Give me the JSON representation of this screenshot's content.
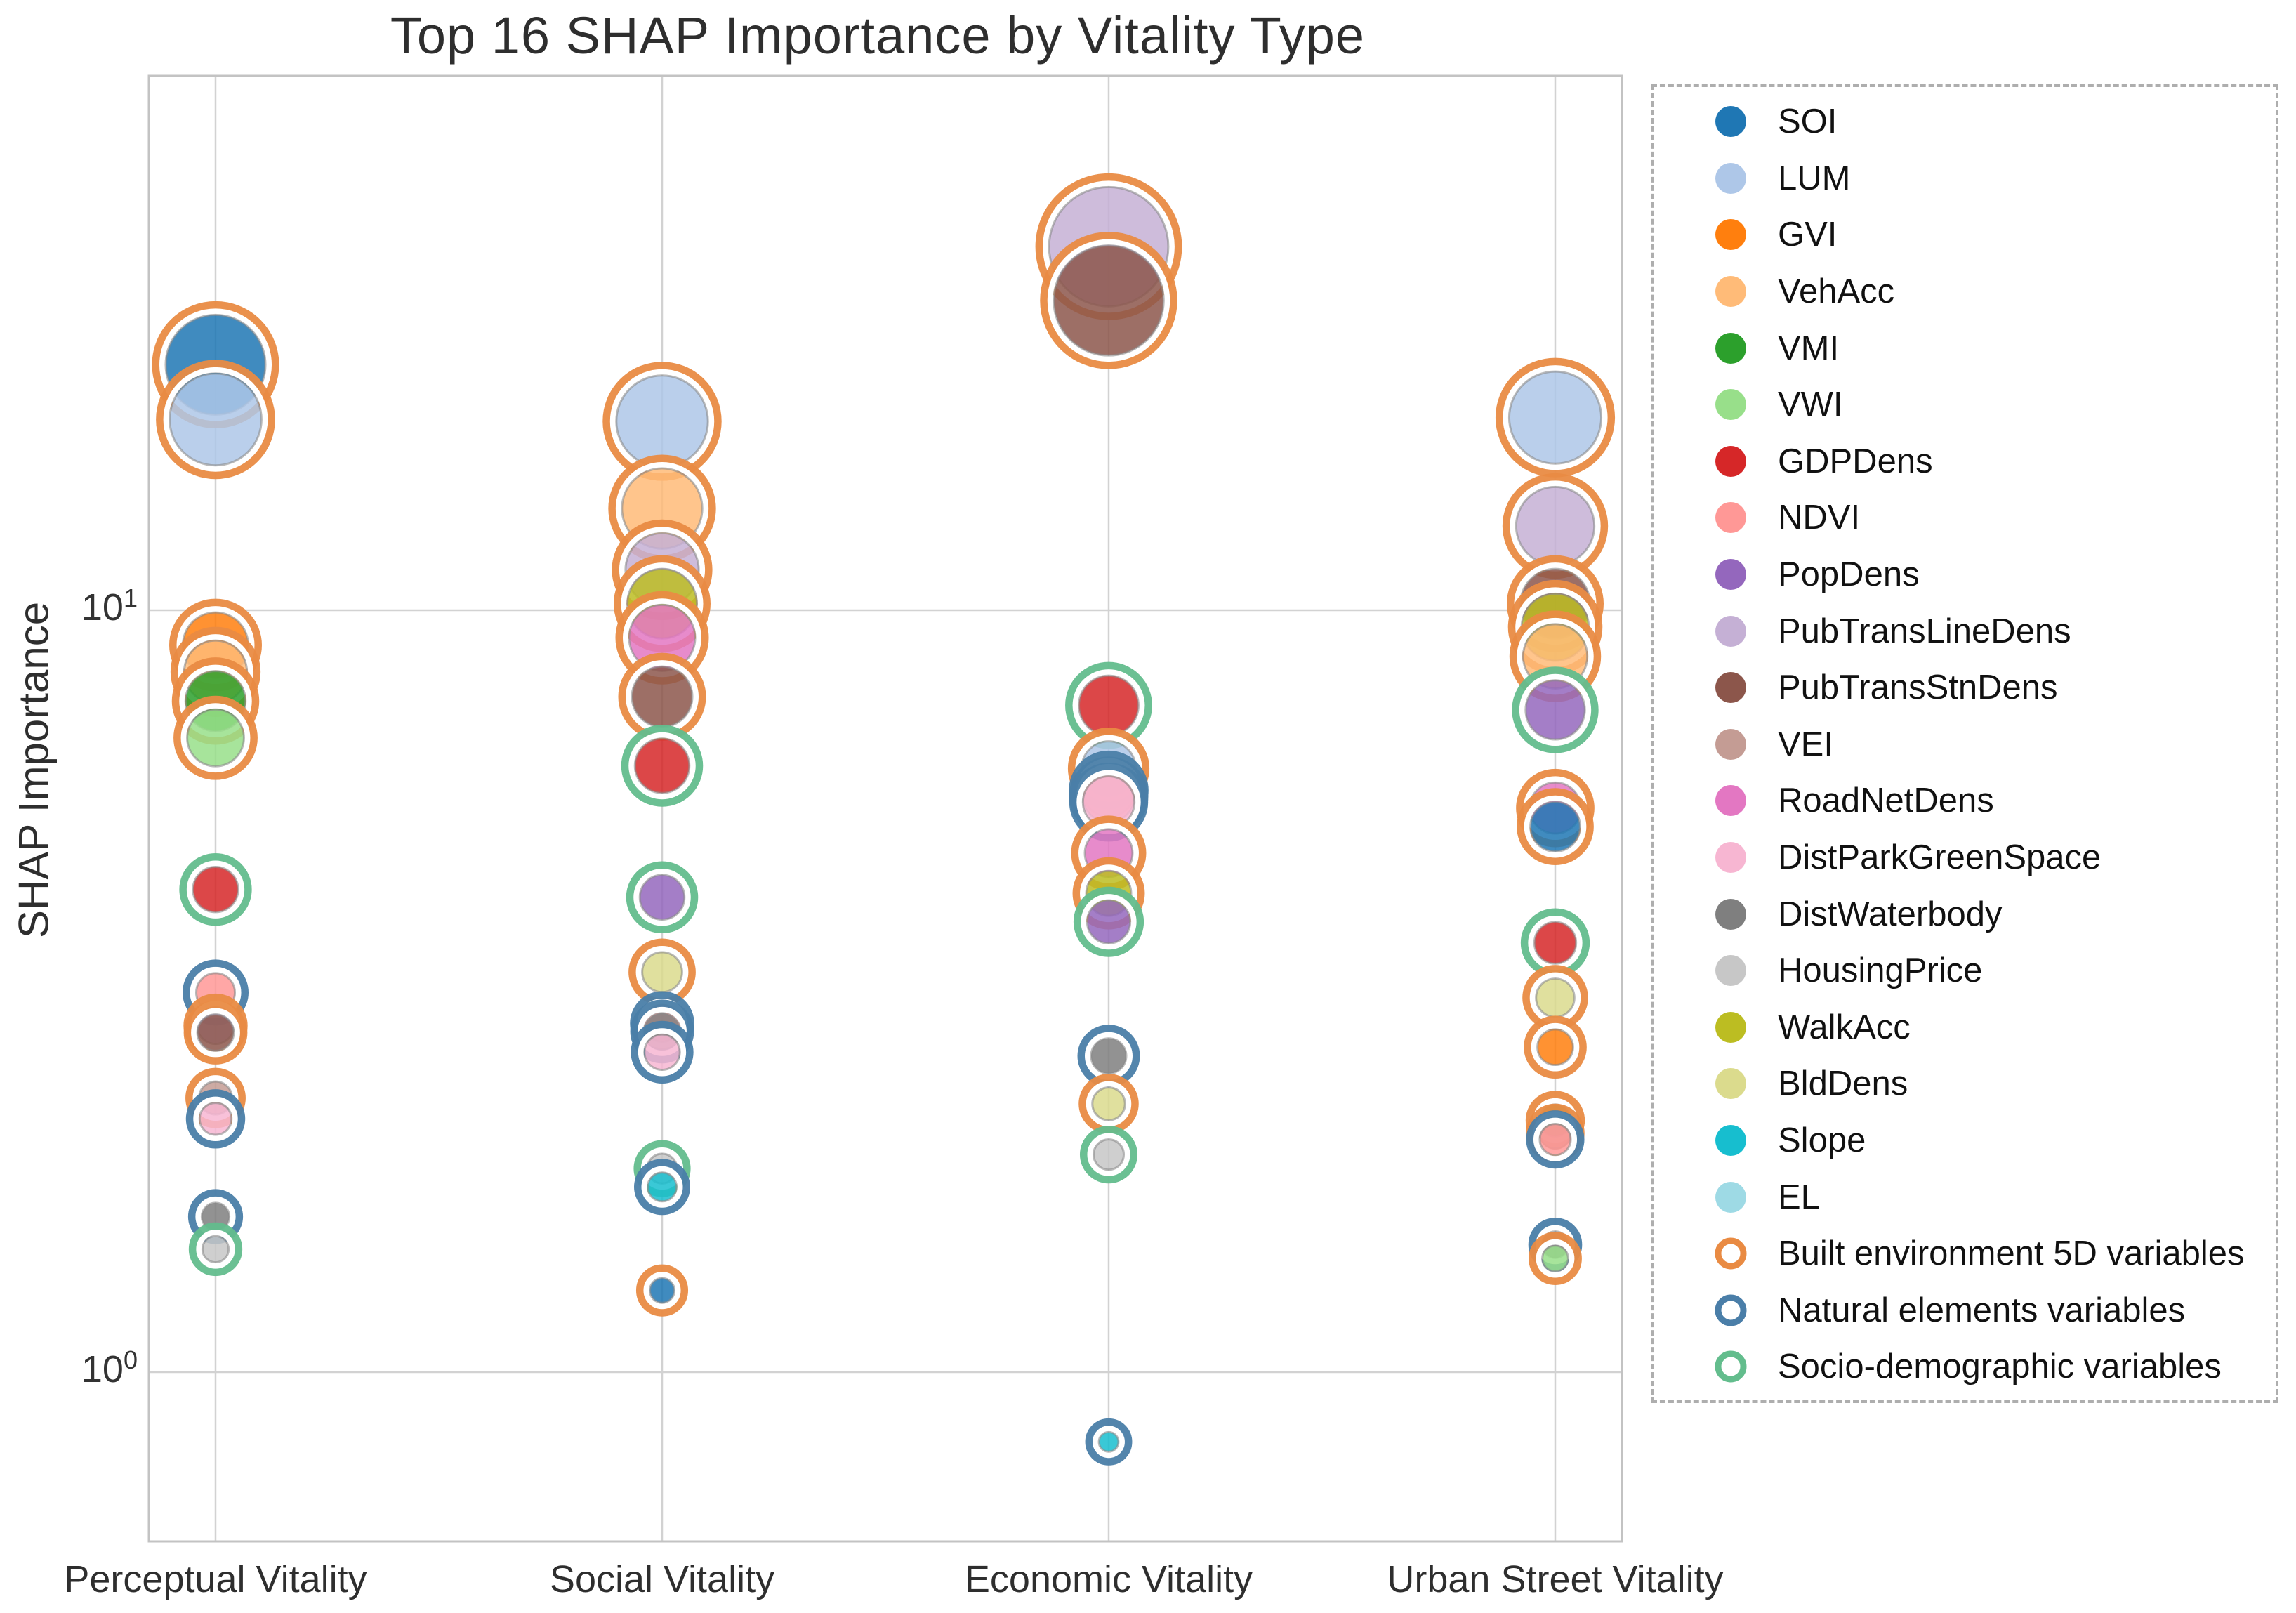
{
  "chart_data": {
    "type": "scatter",
    "title": "Top 16 SHAP Importance by Vitality Type",
    "ylabel": "SHAP Importance",
    "xlabel": "",
    "y_scale": "log",
    "ylim": [
      0.6,
      50
    ],
    "grid": true,
    "legend_position": "right-outside",
    "y_ticks": [
      {
        "base": "10",
        "exp": "1",
        "value": 10
      },
      {
        "base": "10",
        "exp": "0",
        "value": 1
      }
    ],
    "categories": [
      "Perceptual Vitality",
      "Social Vitality",
      "Economic Vitality",
      "Urban Street Vitality"
    ],
    "groups": [
      {
        "id": "built",
        "label": "Built environment 5D variables",
        "ring_color": "#e98b43"
      },
      {
        "id": "natural",
        "label": "Natural elements variables",
        "ring_color": "#4a7ea8"
      },
      {
        "id": "socio",
        "label": "Socio-demographic variables",
        "ring_color": "#63bd8d"
      }
    ],
    "variables": [
      {
        "name": "SOI",
        "color": "#1f77b4",
        "group": "built"
      },
      {
        "name": "LUM",
        "color": "#aec7e8",
        "group": "built"
      },
      {
        "name": "GVI",
        "color": "#ff7f0e",
        "group": "built"
      },
      {
        "name": "VehAcc",
        "color": "#ffbb78",
        "group": "built"
      },
      {
        "name": "VMI",
        "color": "#2ca02c",
        "group": "built"
      },
      {
        "name": "VWI",
        "color": "#98df8a",
        "group": "built"
      },
      {
        "name": "GDPDens",
        "color": "#d62728",
        "group": "socio"
      },
      {
        "name": "NDVI",
        "color": "#ff9896",
        "group": "natural"
      },
      {
        "name": "PopDens",
        "color": "#9467bd",
        "group": "socio"
      },
      {
        "name": "PubTransLineDens",
        "color": "#c5b0d5",
        "group": "built"
      },
      {
        "name": "PubTransStnDens",
        "color": "#8c564b",
        "group": "built"
      },
      {
        "name": "VEI",
        "color": "#c49c94",
        "group": "built"
      },
      {
        "name": "RoadNetDens",
        "color": "#e377c2",
        "group": "built"
      },
      {
        "name": "DistParkGreenSpace",
        "color": "#f7b6d2",
        "group": "natural"
      },
      {
        "name": "DistWaterbody",
        "color": "#7f7f7f",
        "group": "natural"
      },
      {
        "name": "HousingPrice",
        "color": "#c7c7c7",
        "group": "socio"
      },
      {
        "name": "WalkAcc",
        "color": "#bcbd22",
        "group": "built"
      },
      {
        "name": "BldDens",
        "color": "#dbdb8d",
        "group": "built"
      },
      {
        "name": "Slope",
        "color": "#17becf",
        "group": "natural"
      },
      {
        "name": "EL",
        "color": "#9edae5",
        "group": "natural"
      }
    ],
    "series": [
      {
        "category": "Perceptual Vitality",
        "points": [
          [
            "SOI",
            21.0
          ],
          [
            "LUM",
            17.8
          ],
          [
            "GVI",
            9.0
          ],
          [
            "VehAcc",
            8.3
          ],
          [
            "VMI",
            7.6
          ],
          [
            "VWI",
            6.8
          ],
          [
            "GDPDens",
            4.3
          ],
          [
            "NDVI",
            3.15
          ],
          [
            "PubTransLineDens",
            2.85
          ],
          [
            "PubTransStnDens",
            2.79
          ],
          [
            "VEI",
            2.29
          ],
          [
            "DistParkGreenSpace",
            2.15
          ],
          [
            "DistWaterbody",
            1.6
          ],
          [
            "HousingPrice",
            1.45
          ]
        ]
      },
      {
        "category": "Social Vitality",
        "points": [
          [
            "LUM",
            17.7
          ],
          [
            "VehAcc",
            13.6
          ],
          [
            "PubTransLineDens",
            11.3
          ],
          [
            "WalkAcc",
            10.2
          ],
          [
            "RoadNetDens",
            9.2
          ],
          [
            "PubTransStnDens",
            7.7
          ],
          [
            "GDPDens",
            6.25
          ],
          [
            "PopDens",
            4.2
          ],
          [
            "BldDens",
            3.35
          ],
          [
            "NDVI",
            2.87
          ],
          [
            "DistWaterbody",
            2.8
          ],
          [
            "DistParkGreenSpace",
            2.63
          ],
          [
            "HousingPrice",
            1.85
          ],
          [
            "Slope",
            1.75
          ],
          [
            "SOI",
            1.28
          ]
        ]
      },
      {
        "category": "Economic Vitality",
        "points": [
          [
            "PubTransLineDens",
            30.0
          ],
          [
            "PubTransStnDens",
            25.5
          ],
          [
            "GDPDens",
            7.5
          ],
          [
            "LUM",
            6.2
          ],
          [
            "EL",
            5.8
          ],
          [
            "NDVI",
            5.7
          ],
          [
            "DistParkGreenSpace",
            5.6
          ],
          [
            "RoadNetDens",
            4.8
          ],
          [
            "WalkAcc",
            4.25
          ],
          [
            "PopDens",
            3.9
          ],
          [
            "DistWaterbody",
            2.6
          ],
          [
            "BldDens",
            2.25
          ],
          [
            "HousingPrice",
            1.93
          ],
          [
            "Slope",
            0.81
          ]
        ]
      },
      {
        "category": "Urban Street Vitality",
        "points": [
          [
            "LUM",
            17.9
          ],
          [
            "PubTransLineDens",
            12.9
          ],
          [
            "PubTransStnDens",
            10.2
          ],
          [
            "WalkAcc",
            9.5
          ],
          [
            "VehAcc",
            8.7
          ],
          [
            "PopDens",
            7.4
          ],
          [
            "RoadNetDens",
            5.5
          ],
          [
            "SOI",
            5.2
          ],
          [
            "GDPDens",
            3.66
          ],
          [
            "BldDens",
            3.1
          ],
          [
            "GVI",
            2.67
          ],
          [
            "VMI",
            2.14
          ],
          [
            "VEI",
            2.06
          ],
          [
            "NDVI",
            2.02
          ],
          [
            "DistWaterbody",
            1.47
          ],
          [
            "VWI",
            1.41
          ]
        ]
      }
    ]
  }
}
